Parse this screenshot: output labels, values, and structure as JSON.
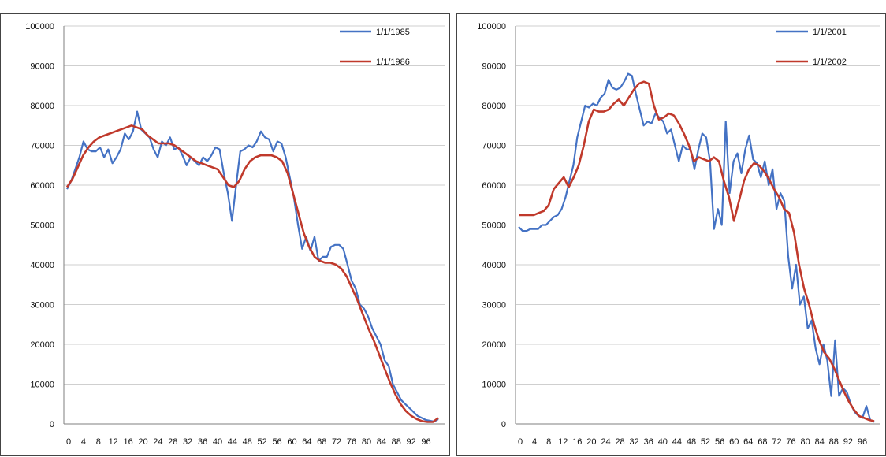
{
  "header": {
    "title": ""
  },
  "colors": {
    "series_a": "#4472c4",
    "series_b": "#c0392b",
    "grid": "#cfcfcf",
    "axis": "#7f7f7f"
  },
  "chart_data": [
    {
      "type": "line",
      "title": "",
      "xlabel": "",
      "ylabel": "",
      "ylim": [
        0,
        100000
      ],
      "yticks": [
        "0",
        "10000",
        "20000",
        "30000",
        "40000",
        "50000",
        "60000",
        "70000",
        "80000",
        "90000",
        "100000"
      ],
      "xticks": [
        "0",
        "4",
        "8",
        "12",
        "16",
        "20",
        "24",
        "28",
        "32",
        "36",
        "40",
        "44",
        "48",
        "52",
        "56",
        "60",
        "64",
        "68",
        "72",
        "76",
        "80",
        "84",
        "88",
        "92",
        "96"
      ],
      "legend": [
        "1/1/1985",
        "1/1/1986"
      ],
      "legend_position": "top-right",
      "grid": "horizontal",
      "series": [
        {
          "name": "1/1/1985",
          "color": "#4472c4",
          "values": [
            59000,
            61000,
            64000,
            67000,
            71000,
            69000,
            68500,
            68500,
            69500,
            67000,
            69000,
            65500,
            67000,
            69000,
            73000,
            71500,
            73500,
            78500,
            74000,
            73000,
            72000,
            69000,
            67000,
            71000,
            70000,
            72000,
            69000,
            69500,
            67500,
            65000,
            67000,
            66000,
            65000,
            67000,
            66000,
            67500,
            69500,
            69000,
            63000,
            58000,
            51000,
            60000,
            68500,
            69000,
            70000,
            69500,
            71000,
            73500,
            72000,
            71500,
            68500,
            71000,
            70500,
            67000,
            62000,
            57000,
            50000,
            44000,
            47000,
            43500,
            47000,
            41000,
            42000,
            42000,
            44500,
            45000,
            45000,
            44000,
            40000,
            36000,
            34000,
            30000,
            29000,
            27000,
            24000,
            22000,
            20000,
            16000,
            14500,
            10000,
            8000,
            6000,
            5000,
            4000,
            3000,
            2000,
            1500,
            1000,
            800,
            600,
            1200
          ],
          "values_note": ""
        },
        {
          "name": "1/1/1986",
          "color": "#c0392b",
          "values": [
            59500,
            61500,
            64500,
            67500,
            69500,
            71000,
            72000,
            72500,
            73000,
            73500,
            74000,
            74500,
            75000,
            74500,
            74000,
            72500,
            71500,
            70500,
            70500,
            70500,
            70000,
            69000,
            68000,
            67000,
            66000,
            65500,
            65000,
            64500,
            64000,
            62000,
            60000,
            59500,
            61000,
            64000,
            66000,
            67000,
            67500,
            67500,
            67500,
            67000,
            66000,
            63000,
            58000,
            53000,
            48000,
            44500,
            42000,
            41000,
            40500,
            40500,
            40000,
            39000,
            37000,
            34000,
            31000,
            27500,
            24000,
            21000,
            17500,
            14000,
            10500,
            7500,
            5000,
            3200,
            2000,
            1200,
            700,
            500,
            500,
            1500
          ]
        }
      ]
    },
    {
      "type": "line",
      "title": "",
      "xlabel": "",
      "ylabel": "",
      "ylim": [
        0,
        100000
      ],
      "yticks": [
        "0",
        "10000",
        "20000",
        "30000",
        "40000",
        "50000",
        "60000",
        "70000",
        "80000",
        "90000",
        "100000"
      ],
      "xticks": [
        "0",
        "4",
        "8",
        "12",
        "16",
        "20",
        "24",
        "28",
        "32",
        "36",
        "40",
        "44",
        "48",
        "52",
        "56",
        "60",
        "64",
        "68",
        "72",
        "76",
        "80",
        "84",
        "88",
        "92",
        "96"
      ],
      "legend": [
        "1/1/2001",
        "1/1/2002"
      ],
      "legend_position": "top-right",
      "grid": "horizontal",
      "series": [
        {
          "name": "1/1/2001",
          "color": "#4472c4",
          "values": [
            49500,
            48500,
            48500,
            49000,
            49000,
            49000,
            50000,
            50000,
            51000,
            52000,
            52500,
            54000,
            57000,
            61000,
            65000,
            72000,
            76000,
            80000,
            79500,
            80500,
            80000,
            82000,
            83000,
            86500,
            84500,
            84000,
            84500,
            86000,
            88000,
            87500,
            83000,
            79000,
            75000,
            76000,
            75500,
            78000,
            77000,
            76000,
            73000,
            74000,
            70000,
            66000,
            70000,
            69000,
            69000,
            64000,
            69000,
            73000,
            72000,
            66000,
            49000,
            54000,
            50000,
            76000,
            58000,
            66000,
            68000,
            63000,
            69000,
            72500,
            66500,
            65500,
            62000,
            66000,
            60000,
            64000,
            54000,
            58000,
            56000,
            42000,
            34000,
            40000,
            30000,
            32000,
            24000,
            26000,
            19000,
            15000,
            20000,
            16000,
            7000,
            21000,
            7000,
            9000,
            8000,
            5000,
            3000,
            2000,
            1500,
            4500,
            1000,
            500
          ],
          "values_note": ""
        },
        {
          "name": "1/1/2002",
          "color": "#c0392b",
          "values": [
            52500,
            52500,
            52500,
            52500,
            53000,
            53500,
            55000,
            59000,
            60500,
            62000,
            59500,
            62000,
            65000,
            70000,
            76000,
            79000,
            78500,
            78500,
            79000,
            80500,
            81500,
            80000,
            82000,
            84000,
            85500,
            86000,
            85500,
            80000,
            76500,
            77000,
            78000,
            77500,
            75500,
            73000,
            70000,
            66000,
            67000,
            66500,
            66000,
            67000,
            66000,
            61000,
            57000,
            51000,
            56000,
            61000,
            64000,
            65500,
            65000,
            63500,
            61500,
            59000,
            57000,
            54000,
            53000,
            48000,
            40000,
            34000,
            30000,
            25000,
            21000,
            18000,
            16500,
            14000,
            11000,
            8000,
            5500,
            3500,
            2000,
            1500,
            1000,
            700
          ]
        }
      ]
    }
  ]
}
